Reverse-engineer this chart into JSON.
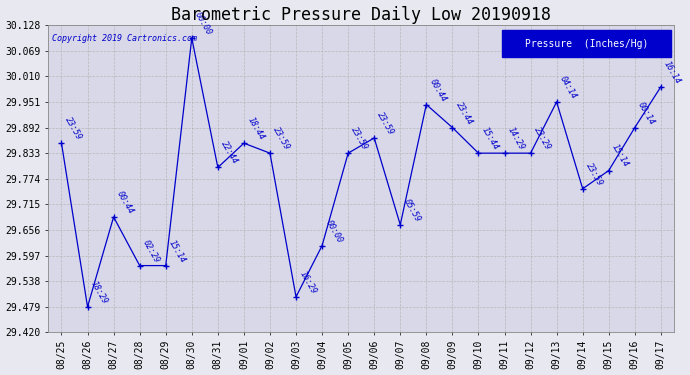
{
  "title": "Barometric Pressure Daily Low 20190918",
  "copyright": "Copyright 2019 Cartronics.com",
  "legend_label": "Pressure  (Inches/Hg)",
  "fig_bg_color": "#e8e8f0",
  "plot_bg_color": "#d8d8e8",
  "line_color": "#0000cc",
  "text_color": "#0000cc",
  "ylim": [
    29.42,
    30.128
  ],
  "yticks": [
    29.42,
    29.479,
    29.538,
    29.597,
    29.656,
    29.715,
    29.774,
    29.833,
    29.892,
    29.951,
    30.01,
    30.069,
    30.128
  ],
  "dates": [
    "08/25",
    "08/26",
    "08/27",
    "08/28",
    "08/29",
    "08/30",
    "08/31",
    "09/01",
    "09/02",
    "09/03",
    "09/04",
    "09/05",
    "09/06",
    "09/07",
    "09/08",
    "09/09",
    "09/10",
    "09/11",
    "09/12",
    "09/13",
    "09/14",
    "09/15",
    "09/16",
    "09/17"
  ],
  "pressures": [
    29.856,
    29.479,
    29.686,
    29.574,
    29.574,
    30.098,
    29.8,
    29.856,
    29.833,
    29.502,
    29.62,
    29.833,
    29.868,
    29.668,
    29.945,
    29.892,
    29.833,
    29.833,
    29.833,
    29.951,
    29.751,
    29.793,
    29.892,
    29.986
  ],
  "point_labels": [
    "23:59",
    "18:29",
    "00:44",
    "02:29",
    "15:14",
    "00:00",
    "22:44",
    "18:44",
    "23:59",
    "16:29",
    "00:00",
    "23:59",
    "23:59",
    "05:59",
    "00:44",
    "23:44",
    "15:44",
    "14:29",
    "23:29",
    "04:14",
    "23:59",
    "15:14",
    "00:14",
    "16:14"
  ],
  "title_fontsize": 12,
  "tick_fontsize": 7,
  "label_fontsize": 6,
  "grid_color": "#b0b0b0",
  "legend_bg": "#0000cc",
  "legend_text_color": "#ffffff",
  "legend_fontsize": 7
}
